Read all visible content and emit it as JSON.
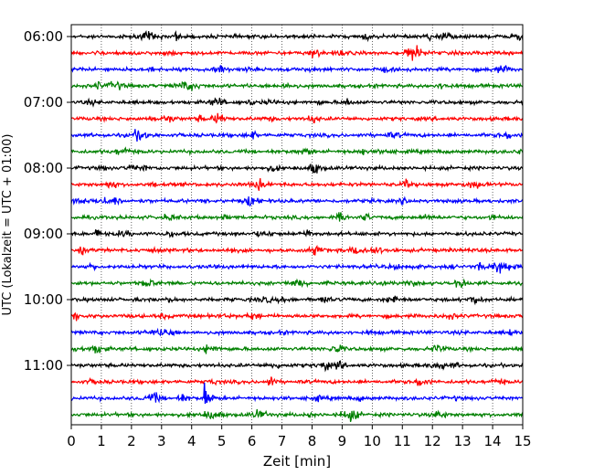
{
  "chart_data": {
    "type": "line",
    "title": "",
    "xlabel": "Zeit  [min]",
    "ylabel": "UTC (Lokalzeit = UTC + 01:00)",
    "xlim": [
      0,
      15
    ],
    "x_ticks": [
      "0",
      "1",
      "2",
      "3",
      "4",
      "5",
      "6",
      "7",
      "8",
      "9",
      "10",
      "11",
      "12",
      "13",
      "14",
      "15"
    ],
    "y_ticks": [
      "06:00",
      "07:00",
      "08:00",
      "09:00",
      "10:00",
      "11:00"
    ],
    "grid": "vertical dotted",
    "legend": "none",
    "row_interval_min": 15,
    "start_time": "06:00",
    "rows": 24,
    "colors": [
      "#000000",
      "#ff0000",
      "#0000ff",
      "#008000"
    ],
    "event": {
      "row_label": "11:30",
      "time_min": 4.4,
      "color": "#0000ff"
    }
  }
}
